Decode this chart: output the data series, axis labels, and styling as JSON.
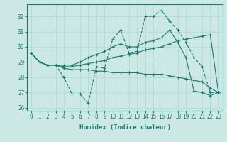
{
  "xlabel": "Humidex (Indice chaleur)",
  "bg_color": "#cce8e4",
  "line_color": "#1a7a6e",
  "grid_color": "#b0d8d4",
  "xlim": [
    -0.5,
    23.5
  ],
  "ylim": [
    25.8,
    32.8
  ],
  "yticks": [
    26,
    27,
    28,
    29,
    30,
    31,
    32
  ],
  "xticks": [
    0,
    1,
    2,
    3,
    4,
    5,
    6,
    7,
    8,
    9,
    10,
    11,
    12,
    13,
    14,
    15,
    16,
    17,
    18,
    19,
    20,
    21,
    22,
    23
  ],
  "series": [
    {
      "x": [
        0,
        1,
        2,
        3,
        4,
        5,
        6,
        7,
        8,
        9,
        10,
        11,
        12,
        13,
        14,
        15,
        16,
        17,
        18,
        19,
        20,
        21,
        22,
        23
      ],
      "y": [
        29.6,
        29.0,
        28.8,
        28.8,
        28.0,
        26.9,
        26.9,
        26.3,
        28.7,
        28.6,
        30.5,
        31.1,
        29.6,
        29.7,
        32.0,
        32.0,
        32.4,
        31.7,
        31.1,
        30.3,
        29.3,
        28.7,
        27.0,
        27.0
      ],
      "linestyle": "--"
    },
    {
      "x": [
        0,
        1,
        2,
        3,
        4,
        5,
        6,
        7,
        8,
        9,
        10,
        11,
        12,
        13,
        14,
        15,
        16,
        17,
        18,
        19,
        20,
        21,
        22,
        23
      ],
      "y": [
        29.6,
        29.0,
        28.8,
        28.8,
        28.8,
        28.8,
        29.0,
        29.3,
        29.5,
        29.7,
        30.0,
        30.2,
        30.0,
        30.0,
        30.3,
        30.4,
        30.6,
        31.1,
        30.3,
        29.3,
        27.1,
        27.0,
        26.8,
        27.0
      ],
      "linestyle": "-"
    },
    {
      "x": [
        0,
        1,
        2,
        3,
        4,
        5,
        6,
        7,
        8,
        9,
        10,
        11,
        12,
        13,
        14,
        15,
        16,
        17,
        18,
        19,
        20,
        21,
        22,
        23
      ],
      "y": [
        29.6,
        29.0,
        28.8,
        28.8,
        28.7,
        28.7,
        28.8,
        28.9,
        29.0,
        29.1,
        29.3,
        29.4,
        29.5,
        29.6,
        29.8,
        29.9,
        30.0,
        30.2,
        30.4,
        30.5,
        30.6,
        30.7,
        30.8,
        27.0
      ],
      "linestyle": "-"
    },
    {
      "x": [
        0,
        1,
        2,
        3,
        4,
        5,
        6,
        7,
        8,
        9,
        10,
        11,
        12,
        13,
        14,
        15,
        16,
        17,
        18,
        19,
        20,
        21,
        22,
        23
      ],
      "y": [
        29.6,
        29.0,
        28.8,
        28.8,
        28.6,
        28.5,
        28.5,
        28.5,
        28.4,
        28.4,
        28.3,
        28.3,
        28.3,
        28.3,
        28.2,
        28.2,
        28.2,
        28.1,
        28.0,
        27.9,
        27.8,
        27.7,
        27.3,
        27.0
      ],
      "linestyle": "-"
    }
  ]
}
